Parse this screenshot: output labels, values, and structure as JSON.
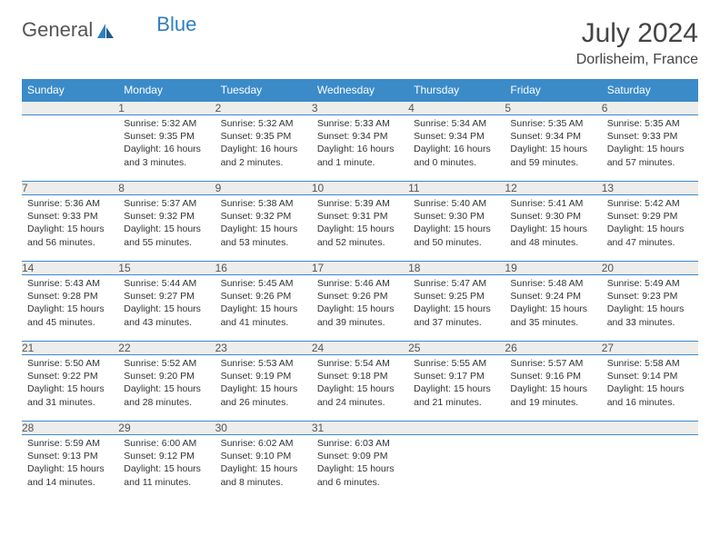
{
  "logo": {
    "text1": "General",
    "text2": "Blue"
  },
  "title": "July 2024",
  "location": "Dorlisheim, France",
  "dows": [
    "Sunday",
    "Monday",
    "Tuesday",
    "Wednesday",
    "Thursday",
    "Friday",
    "Saturday"
  ],
  "colors": {
    "header_bg": "#3b8bc9",
    "header_text": "#ffffff",
    "daynum_bg": "#ededed",
    "rule": "#3b8bc9",
    "logo_blue": "#2f7fbf"
  },
  "weeks": [
    [
      null,
      {
        "n": "1",
        "sr": "5:32 AM",
        "ss": "9:35 PM",
        "dl": "16 hours and 3 minutes."
      },
      {
        "n": "2",
        "sr": "5:32 AM",
        "ss": "9:35 PM",
        "dl": "16 hours and 2 minutes."
      },
      {
        "n": "3",
        "sr": "5:33 AM",
        "ss": "9:34 PM",
        "dl": "16 hours and 1 minute."
      },
      {
        "n": "4",
        "sr": "5:34 AM",
        "ss": "9:34 PM",
        "dl": "16 hours and 0 minutes."
      },
      {
        "n": "5",
        "sr": "5:35 AM",
        "ss": "9:34 PM",
        "dl": "15 hours and 59 minutes."
      },
      {
        "n": "6",
        "sr": "5:35 AM",
        "ss": "9:33 PM",
        "dl": "15 hours and 57 minutes."
      }
    ],
    [
      {
        "n": "7",
        "sr": "5:36 AM",
        "ss": "9:33 PM",
        "dl": "15 hours and 56 minutes."
      },
      {
        "n": "8",
        "sr": "5:37 AM",
        "ss": "9:32 PM",
        "dl": "15 hours and 55 minutes."
      },
      {
        "n": "9",
        "sr": "5:38 AM",
        "ss": "9:32 PM",
        "dl": "15 hours and 53 minutes."
      },
      {
        "n": "10",
        "sr": "5:39 AM",
        "ss": "9:31 PM",
        "dl": "15 hours and 52 minutes."
      },
      {
        "n": "11",
        "sr": "5:40 AM",
        "ss": "9:30 PM",
        "dl": "15 hours and 50 minutes."
      },
      {
        "n": "12",
        "sr": "5:41 AM",
        "ss": "9:30 PM",
        "dl": "15 hours and 48 minutes."
      },
      {
        "n": "13",
        "sr": "5:42 AM",
        "ss": "9:29 PM",
        "dl": "15 hours and 47 minutes."
      }
    ],
    [
      {
        "n": "14",
        "sr": "5:43 AM",
        "ss": "9:28 PM",
        "dl": "15 hours and 45 minutes."
      },
      {
        "n": "15",
        "sr": "5:44 AM",
        "ss": "9:27 PM",
        "dl": "15 hours and 43 minutes."
      },
      {
        "n": "16",
        "sr": "5:45 AM",
        "ss": "9:26 PM",
        "dl": "15 hours and 41 minutes."
      },
      {
        "n": "17",
        "sr": "5:46 AM",
        "ss": "9:26 PM",
        "dl": "15 hours and 39 minutes."
      },
      {
        "n": "18",
        "sr": "5:47 AM",
        "ss": "9:25 PM",
        "dl": "15 hours and 37 minutes."
      },
      {
        "n": "19",
        "sr": "5:48 AM",
        "ss": "9:24 PM",
        "dl": "15 hours and 35 minutes."
      },
      {
        "n": "20",
        "sr": "5:49 AM",
        "ss": "9:23 PM",
        "dl": "15 hours and 33 minutes."
      }
    ],
    [
      {
        "n": "21",
        "sr": "5:50 AM",
        "ss": "9:22 PM",
        "dl": "15 hours and 31 minutes."
      },
      {
        "n": "22",
        "sr": "5:52 AM",
        "ss": "9:20 PM",
        "dl": "15 hours and 28 minutes."
      },
      {
        "n": "23",
        "sr": "5:53 AM",
        "ss": "9:19 PM",
        "dl": "15 hours and 26 minutes."
      },
      {
        "n": "24",
        "sr": "5:54 AM",
        "ss": "9:18 PM",
        "dl": "15 hours and 24 minutes."
      },
      {
        "n": "25",
        "sr": "5:55 AM",
        "ss": "9:17 PM",
        "dl": "15 hours and 21 minutes."
      },
      {
        "n": "26",
        "sr": "5:57 AM",
        "ss": "9:16 PM",
        "dl": "15 hours and 19 minutes."
      },
      {
        "n": "27",
        "sr": "5:58 AM",
        "ss": "9:14 PM",
        "dl": "15 hours and 16 minutes."
      }
    ],
    [
      {
        "n": "28",
        "sr": "5:59 AM",
        "ss": "9:13 PM",
        "dl": "15 hours and 14 minutes."
      },
      {
        "n": "29",
        "sr": "6:00 AM",
        "ss": "9:12 PM",
        "dl": "15 hours and 11 minutes."
      },
      {
        "n": "30",
        "sr": "6:02 AM",
        "ss": "9:10 PM",
        "dl": "15 hours and 8 minutes."
      },
      {
        "n": "31",
        "sr": "6:03 AM",
        "ss": "9:09 PM",
        "dl": "15 hours and 6 minutes."
      },
      null,
      null,
      null
    ]
  ],
  "labels": {
    "sunrise": "Sunrise:",
    "sunset": "Sunset:",
    "daylight": "Daylight:"
  }
}
